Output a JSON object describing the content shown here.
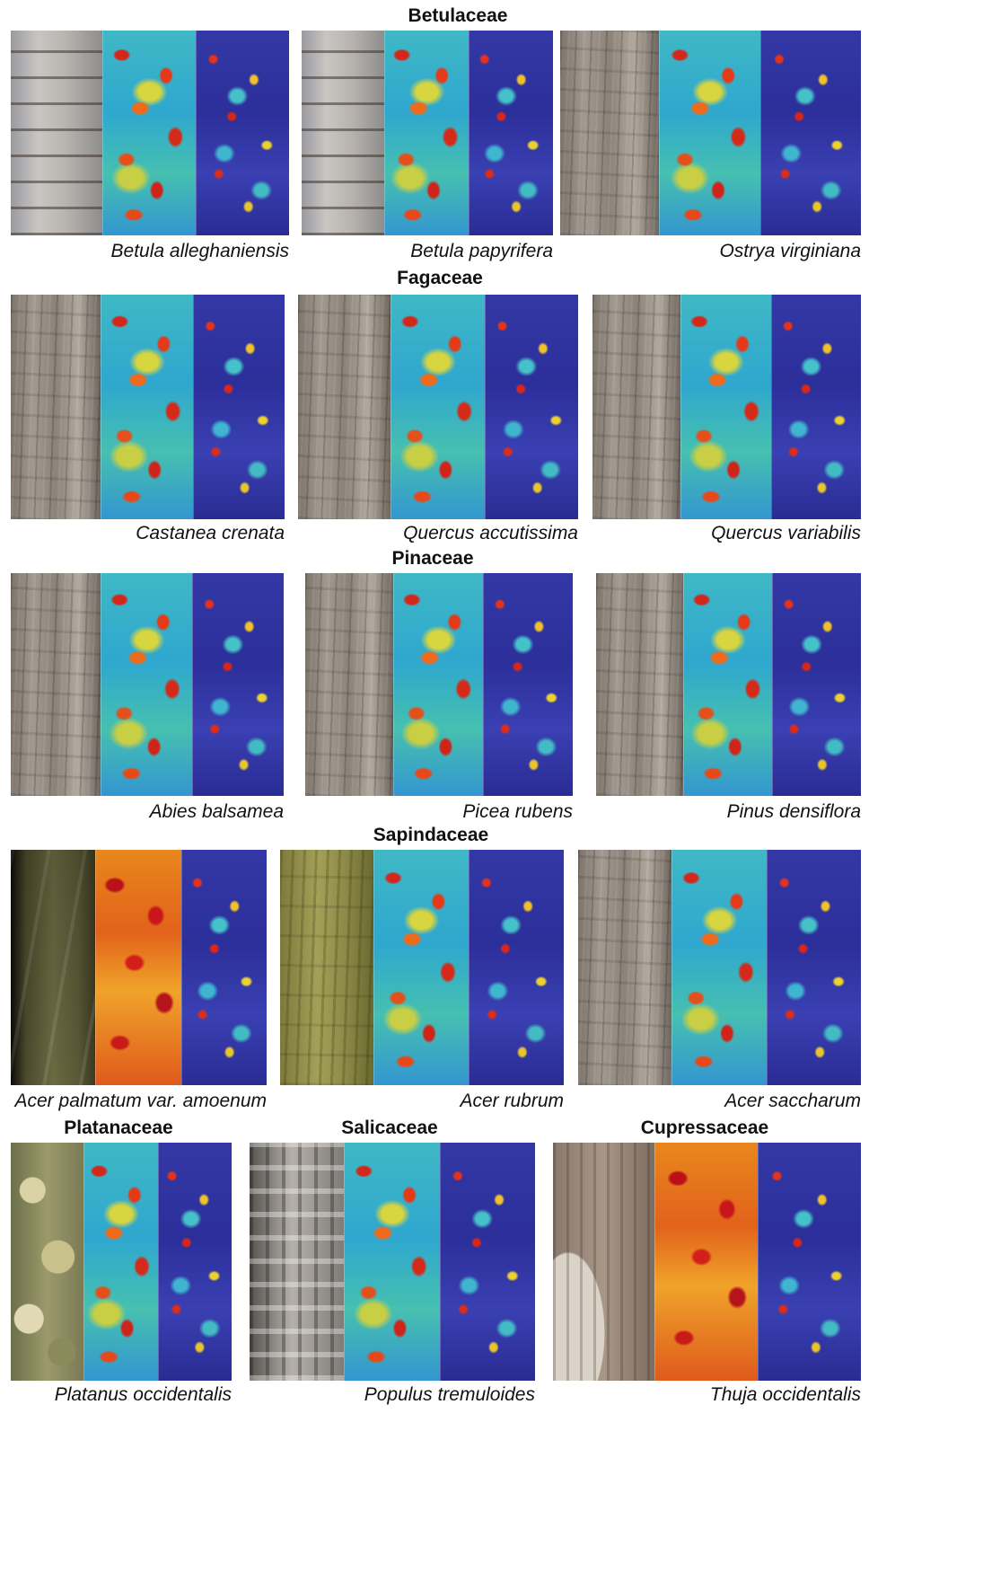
{
  "families": {
    "f1": "Betulaceae",
    "f2": "Fagaceae",
    "f3": "Pinaceae",
    "f4": "Sapindaceae",
    "f5": "Platanaceae",
    "f6": "Salicaceae",
    "f7": "Cupressaceae"
  },
  "species": {
    "s1": "Betula alleghaniensis",
    "s2": "Betula papyrifera",
    "s3": "Ostrya virginiana",
    "s4": "Castanea crenata",
    "s5": "Quercus accutissima",
    "s6": "Quercus variabilis",
    "s7": "Abies balsamea",
    "s8": "Picea rubens",
    "s9": "Pinus densiflora",
    "s10": "Acer palmatum var. amoenum",
    "s11": "Acer rubrum",
    "s12": "Acer saccharum",
    "s13": "Platanus occidentalis",
    "s14": "Populus tremuloides",
    "s15": "Thuja occidentalis"
  }
}
